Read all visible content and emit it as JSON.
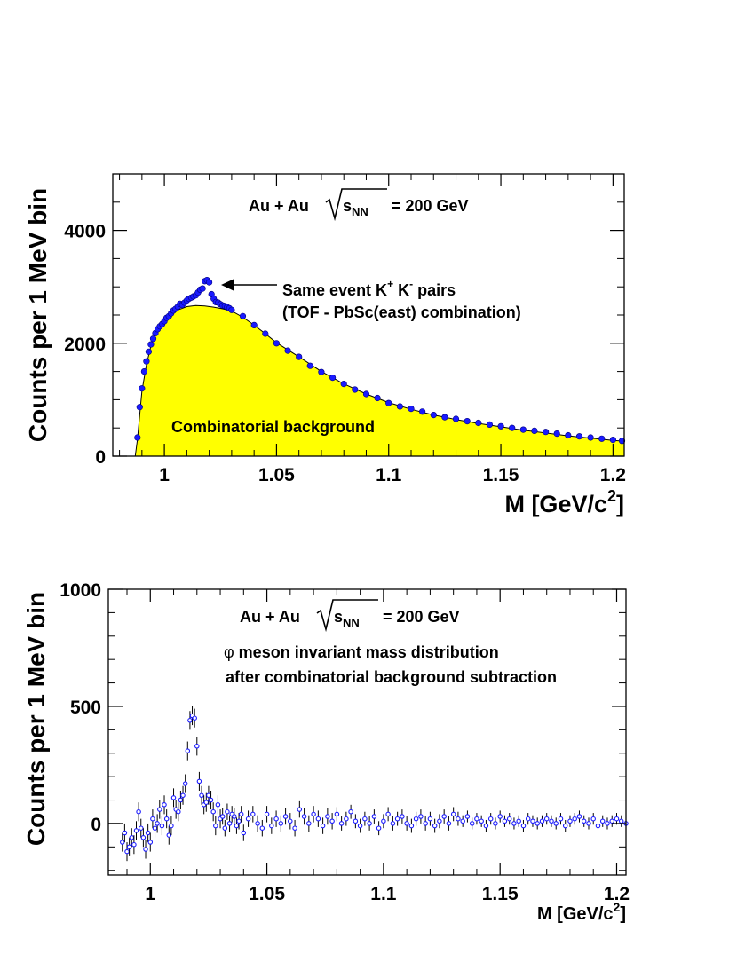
{
  "chart_data": [
    {
      "type": "scatter",
      "panel": "top",
      "ylabel": "Counts per 1 MeV bin",
      "xlabel_main": "M [GeV/c",
      "xlabel_sup": "2",
      "xlabel_end": "]",
      "xlim": [
        0.977,
        1.205
      ],
      "ylim": [
        0,
        5000
      ],
      "xticks": [
        1,
        1.05,
        1.1,
        1.15,
        1.2
      ],
      "xtick_labels": [
        "1",
        "1.05",
        "1.1",
        "1.15",
        "1.2"
      ],
      "yticks": [
        0,
        2000,
        4000
      ],
      "ytick_labels": [
        "0",
        "2000",
        "4000"
      ],
      "colors": {
        "signal": "#1a1aff",
        "background_fill": "#ffff00"
      },
      "annotations": {
        "system": "Au + Au",
        "energy_sub": "NN",
        "energy_rest": "= 200 GeV",
        "pairs_prefix": "Same event K",
        "pairs_plus": "+",
        "pairs_mid": " K",
        "pairs_minus": "-",
        "pairs_suffix": " pairs",
        "combination": "(TOF - PbSc(east) combination)",
        "background_label": "Combinatorial background"
      },
      "series": [
        {
          "name": "Same event K+ K- pairs",
          "x": [
            0.988,
            0.989,
            0.99,
            0.991,
            0.992,
            0.993,
            0.994,
            0.995,
            0.996,
            0.997,
            0.998,
            0.999,
            1.0,
            1.001,
            1.002,
            1.003,
            1.004,
            1.005,
            1.006,
            1.007,
            1.008,
            1.009,
            1.01,
            1.011,
            1.012,
            1.013,
            1.014,
            1.015,
            1.016,
            1.017,
            1.018,
            1.019,
            1.02,
            1.021,
            1.022,
            1.023,
            1.024,
            1.025,
            1.026,
            1.027,
            1.028,
            1.029,
            1.03,
            1.035,
            1.04,
            1.045,
            1.05,
            1.055,
            1.06,
            1.065,
            1.07,
            1.075,
            1.08,
            1.085,
            1.09,
            1.095,
            1.1,
            1.105,
            1.11,
            1.115,
            1.12,
            1.125,
            1.13,
            1.135,
            1.14,
            1.145,
            1.15,
            1.155,
            1.16,
            1.165,
            1.17,
            1.175,
            1.18,
            1.185,
            1.19,
            1.195,
            1.2,
            1.204
          ],
          "y": [
            330,
            870,
            1200,
            1500,
            1680,
            1850,
            1980,
            2080,
            2180,
            2250,
            2300,
            2340,
            2390,
            2450,
            2480,
            2530,
            2580,
            2610,
            2650,
            2700,
            2680,
            2720,
            2760,
            2790,
            2810,
            2830,
            2850,
            2900,
            2950,
            2970,
            3100,
            3120,
            3080,
            2870,
            2790,
            2730,
            2720,
            2690,
            2670,
            2660,
            2640,
            2620,
            2590,
            2480,
            2320,
            2170,
            2000,
            1870,
            1760,
            1600,
            1490,
            1390,
            1280,
            1180,
            1100,
            1030,
            940,
            880,
            840,
            790,
            730,
            690,
            660,
            620,
            590,
            560,
            530,
            500,
            470,
            450,
            430,
            400,
            370,
            350,
            330,
            310,
            290,
            270
          ]
        },
        {
          "name": "Combinatorial background",
          "x": [
            0.987,
            0.988,
            0.99,
            0.992,
            0.994,
            0.996,
            0.998,
            1.0,
            1.003,
            1.006,
            1.01,
            1.014,
            1.018,
            1.022,
            1.026,
            1.03,
            1.035,
            1.04,
            1.045,
            1.05,
            1.06,
            1.07,
            1.08,
            1.09,
            1.1,
            1.11,
            1.12,
            1.13,
            1.14,
            1.15,
            1.16,
            1.17,
            1.18,
            1.19,
            1.2,
            1.205
          ],
          "y": [
            0,
            300,
            1150,
            1620,
            1950,
            2150,
            2280,
            2380,
            2490,
            2590,
            2650,
            2670,
            2660,
            2640,
            2610,
            2570,
            2460,
            2320,
            2170,
            2010,
            1760,
            1500,
            1280,
            1100,
            950,
            830,
            730,
            650,
            580,
            520,
            460,
            410,
            360,
            320,
            280,
            265
          ]
        }
      ]
    },
    {
      "type": "scatter",
      "panel": "bottom",
      "ylabel": "Counts per 1 MeV bin",
      "xlabel_main": "M [GeV/c",
      "xlabel_sup": "2",
      "xlabel_end": "]",
      "xlim": [
        0.982,
        1.204
      ],
      "ylim": [
        -220,
        1000
      ],
      "xticks": [
        1,
        1.05,
        1.1,
        1.15,
        1.2
      ],
      "xtick_labels": [
        "1",
        "1.05",
        "1.1",
        "1.15",
        "1.2"
      ],
      "yticks": [
        0,
        500,
        1000
      ],
      "ytick_labels": [
        "0",
        "500",
        "1000"
      ],
      "colors": {
        "marker": "#1a1aff",
        "error_bar": "#000000"
      },
      "annotations": {
        "system": "Au + Au",
        "energy_sub": "NN",
        "energy_rest": "= 200 GeV",
        "phi_symbol": "φ",
        "line1": " meson invariant mass distribution",
        "line2": "after combinatorial background subtraction"
      },
      "series": [
        {
          "name": "φ meson",
          "x": [
            0.988,
            0.989,
            0.99,
            0.991,
            0.992,
            0.993,
            0.994,
            0.995,
            0.996,
            0.997,
            0.998,
            0.999,
            1.0,
            1.001,
            1.002,
            1.003,
            1.004,
            1.005,
            1.006,
            1.007,
            1.008,
            1.009,
            1.01,
            1.011,
            1.012,
            1.013,
            1.014,
            1.015,
            1.016,
            1.017,
            1.018,
            1.019,
            1.02,
            1.021,
            1.022,
            1.023,
            1.024,
            1.025,
            1.026,
            1.027,
            1.028,
            1.029,
            1.03,
            1.031,
            1.032,
            1.033,
            1.034,
            1.035,
            1.036,
            1.037,
            1.038,
            1.039,
            1.04,
            1.042,
            1.044,
            1.046,
            1.048,
            1.05,
            1.052,
            1.054,
            1.056,
            1.058,
            1.06,
            1.062,
            1.064,
            1.066,
            1.068,
            1.07,
            1.072,
            1.074,
            1.076,
            1.078,
            1.08,
            1.082,
            1.084,
            1.086,
            1.088,
            1.09,
            1.092,
            1.094,
            1.096,
            1.098,
            1.1,
            1.102,
            1.104,
            1.106,
            1.108,
            1.11,
            1.112,
            1.114,
            1.116,
            1.118,
            1.12,
            1.122,
            1.124,
            1.126,
            1.128,
            1.13,
            1.132,
            1.134,
            1.136,
            1.138,
            1.14,
            1.142,
            1.144,
            1.146,
            1.148,
            1.15,
            1.152,
            1.154,
            1.156,
            1.158,
            1.16,
            1.162,
            1.164,
            1.166,
            1.168,
            1.17,
            1.172,
            1.174,
            1.176,
            1.178,
            1.18,
            1.182,
            1.184,
            1.186,
            1.188,
            1.19,
            1.192,
            1.194,
            1.196,
            1.198,
            1.2,
            1.202,
            1.204
          ],
          "y": [
            -80,
            -40,
            -120,
            -100,
            -60,
            -90,
            -30,
            50,
            -20,
            -60,
            -110,
            -40,
            -80,
            20,
            -20,
            0,
            60,
            -10,
            80,
            20,
            -50,
            -10,
            110,
            60,
            50,
            100,
            120,
            170,
            310,
            440,
            460,
            450,
            330,
            180,
            120,
            80,
            90,
            120,
            100,
            50,
            -10,
            80,
            20,
            30,
            -20,
            50,
            0,
            40,
            30,
            -10,
            10,
            40,
            -40,
            20,
            40,
            0,
            -20,
            40,
            -10,
            20,
            0,
            30,
            10,
            -20,
            60,
            30,
            0,
            40,
            20,
            -10,
            30,
            10,
            40,
            0,
            20,
            50,
            10,
            -10,
            20,
            0,
            30,
            -20,
            10,
            40,
            0,
            20,
            30,
            0,
            -10,
            20,
            30,
            0,
            20,
            -10,
            10,
            30,
            0,
            40,
            20,
            10,
            30,
            0,
            20,
            10,
            -10,
            20,
            0,
            30,
            10,
            20,
            0,
            10,
            -10,
            20,
            10,
            0,
            10,
            20,
            10,
            0,
            20,
            -10,
            10,
            20,
            30,
            10,
            0,
            20,
            -10,
            10,
            0,
            10,
            20,
            10,
            0
          ],
          "errors": [
            40,
            40,
            40,
            40,
            40,
            40,
            40,
            40,
            40,
            40,
            40,
            40,
            40,
            40,
            40,
            40,
            40,
            40,
            40,
            40,
            40,
            40,
            40,
            40,
            40,
            40,
            40,
            40,
            40,
            40,
            40,
            40,
            40,
            40,
            40,
            40,
            40,
            40,
            40,
            40,
            40,
            40,
            40,
            35,
            35,
            35,
            35,
            35,
            35,
            35,
            35,
            35,
            35,
            35,
            35,
            35,
            35,
            35,
            35,
            35,
            35,
            35,
            35,
            35,
            35,
            35,
            35,
            35,
            35,
            35,
            35,
            35,
            30,
            30,
            30,
            30,
            30,
            30,
            30,
            30,
            30,
            30,
            30,
            30,
            30,
            30,
            30,
            30,
            30,
            30,
            30,
            30,
            30,
            30,
            30,
            30,
            30,
            30,
            30,
            25,
            25,
            25,
            25,
            25,
            25,
            25,
            25,
            25,
            25,
            25,
            25,
            25,
            25,
            25,
            25,
            25,
            25,
            25,
            25,
            25,
            25,
            25,
            25,
            25,
            25,
            25,
            25,
            25,
            25,
            25,
            25,
            25,
            25,
            25,
            25
          ]
        }
      ]
    }
  ]
}
